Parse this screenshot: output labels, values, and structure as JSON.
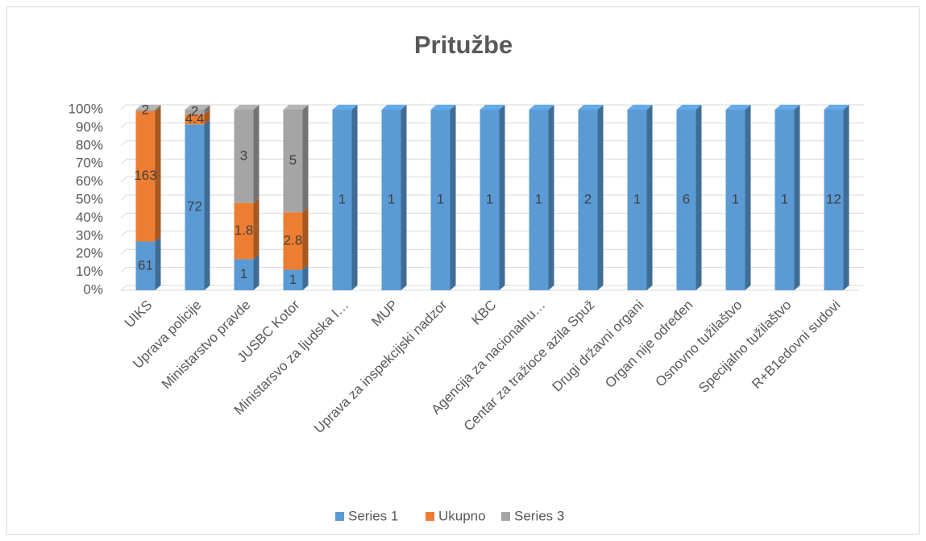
{
  "chart_data": {
    "type": "bar",
    "stacking": "percent",
    "title": "Pritužbe",
    "categories": [
      "UIKS",
      "Uprava policije",
      "Ministarstvo pravde",
      "JUSBC Kotor",
      "Ministarsvo za ljudska I…",
      "MUP",
      "Uprava za inspekcijski nadzor",
      "KBC",
      "Agencija za nacionalnu…",
      "Centar za tražioce azila Spuž",
      "Drugi državni organi",
      "Organ nije određen",
      "Osnovno tužilaštvo",
      "Specijalno tužilaštvo",
      "R+B1edovni sudovi"
    ],
    "series": [
      {
        "name": "Series 1",
        "color": "#5b9bd5",
        "values": [
          61,
          72,
          1,
          1,
          1,
          1,
          1,
          1,
          1,
          2,
          1,
          6,
          1,
          1,
          12
        ]
      },
      {
        "name": "Ukupno",
        "color": "#ed7d31",
        "values": [
          163,
          4.4,
          1.8,
          2.8,
          null,
          null,
          null,
          null,
          null,
          null,
          null,
          null,
          null,
          null,
          null
        ]
      },
      {
        "name": "Series 3",
        "color": "#a5a5a5",
        "values": [
          2,
          2,
          3,
          5,
          null,
          null,
          null,
          null,
          null,
          null,
          null,
          null,
          null,
          null,
          null
        ]
      }
    ],
    "ylim": [
      0,
      100
    ],
    "yticks": [
      {
        "value": 0,
        "label": "0%"
      },
      {
        "value": 10,
        "label": "10%"
      },
      {
        "value": 20,
        "label": "20%"
      },
      {
        "value": 30,
        "label": "30%"
      },
      {
        "value": 40,
        "label": "40%"
      },
      {
        "value": 50,
        "label": "50%"
      },
      {
        "value": 60,
        "label": "60%"
      },
      {
        "value": 70,
        "label": "70%"
      },
      {
        "value": 80,
        "label": "80%"
      },
      {
        "value": 90,
        "label": "90%"
      },
      {
        "value": 100,
        "label": "100%"
      }
    ],
    "grid": true,
    "legend": "bottom"
  }
}
